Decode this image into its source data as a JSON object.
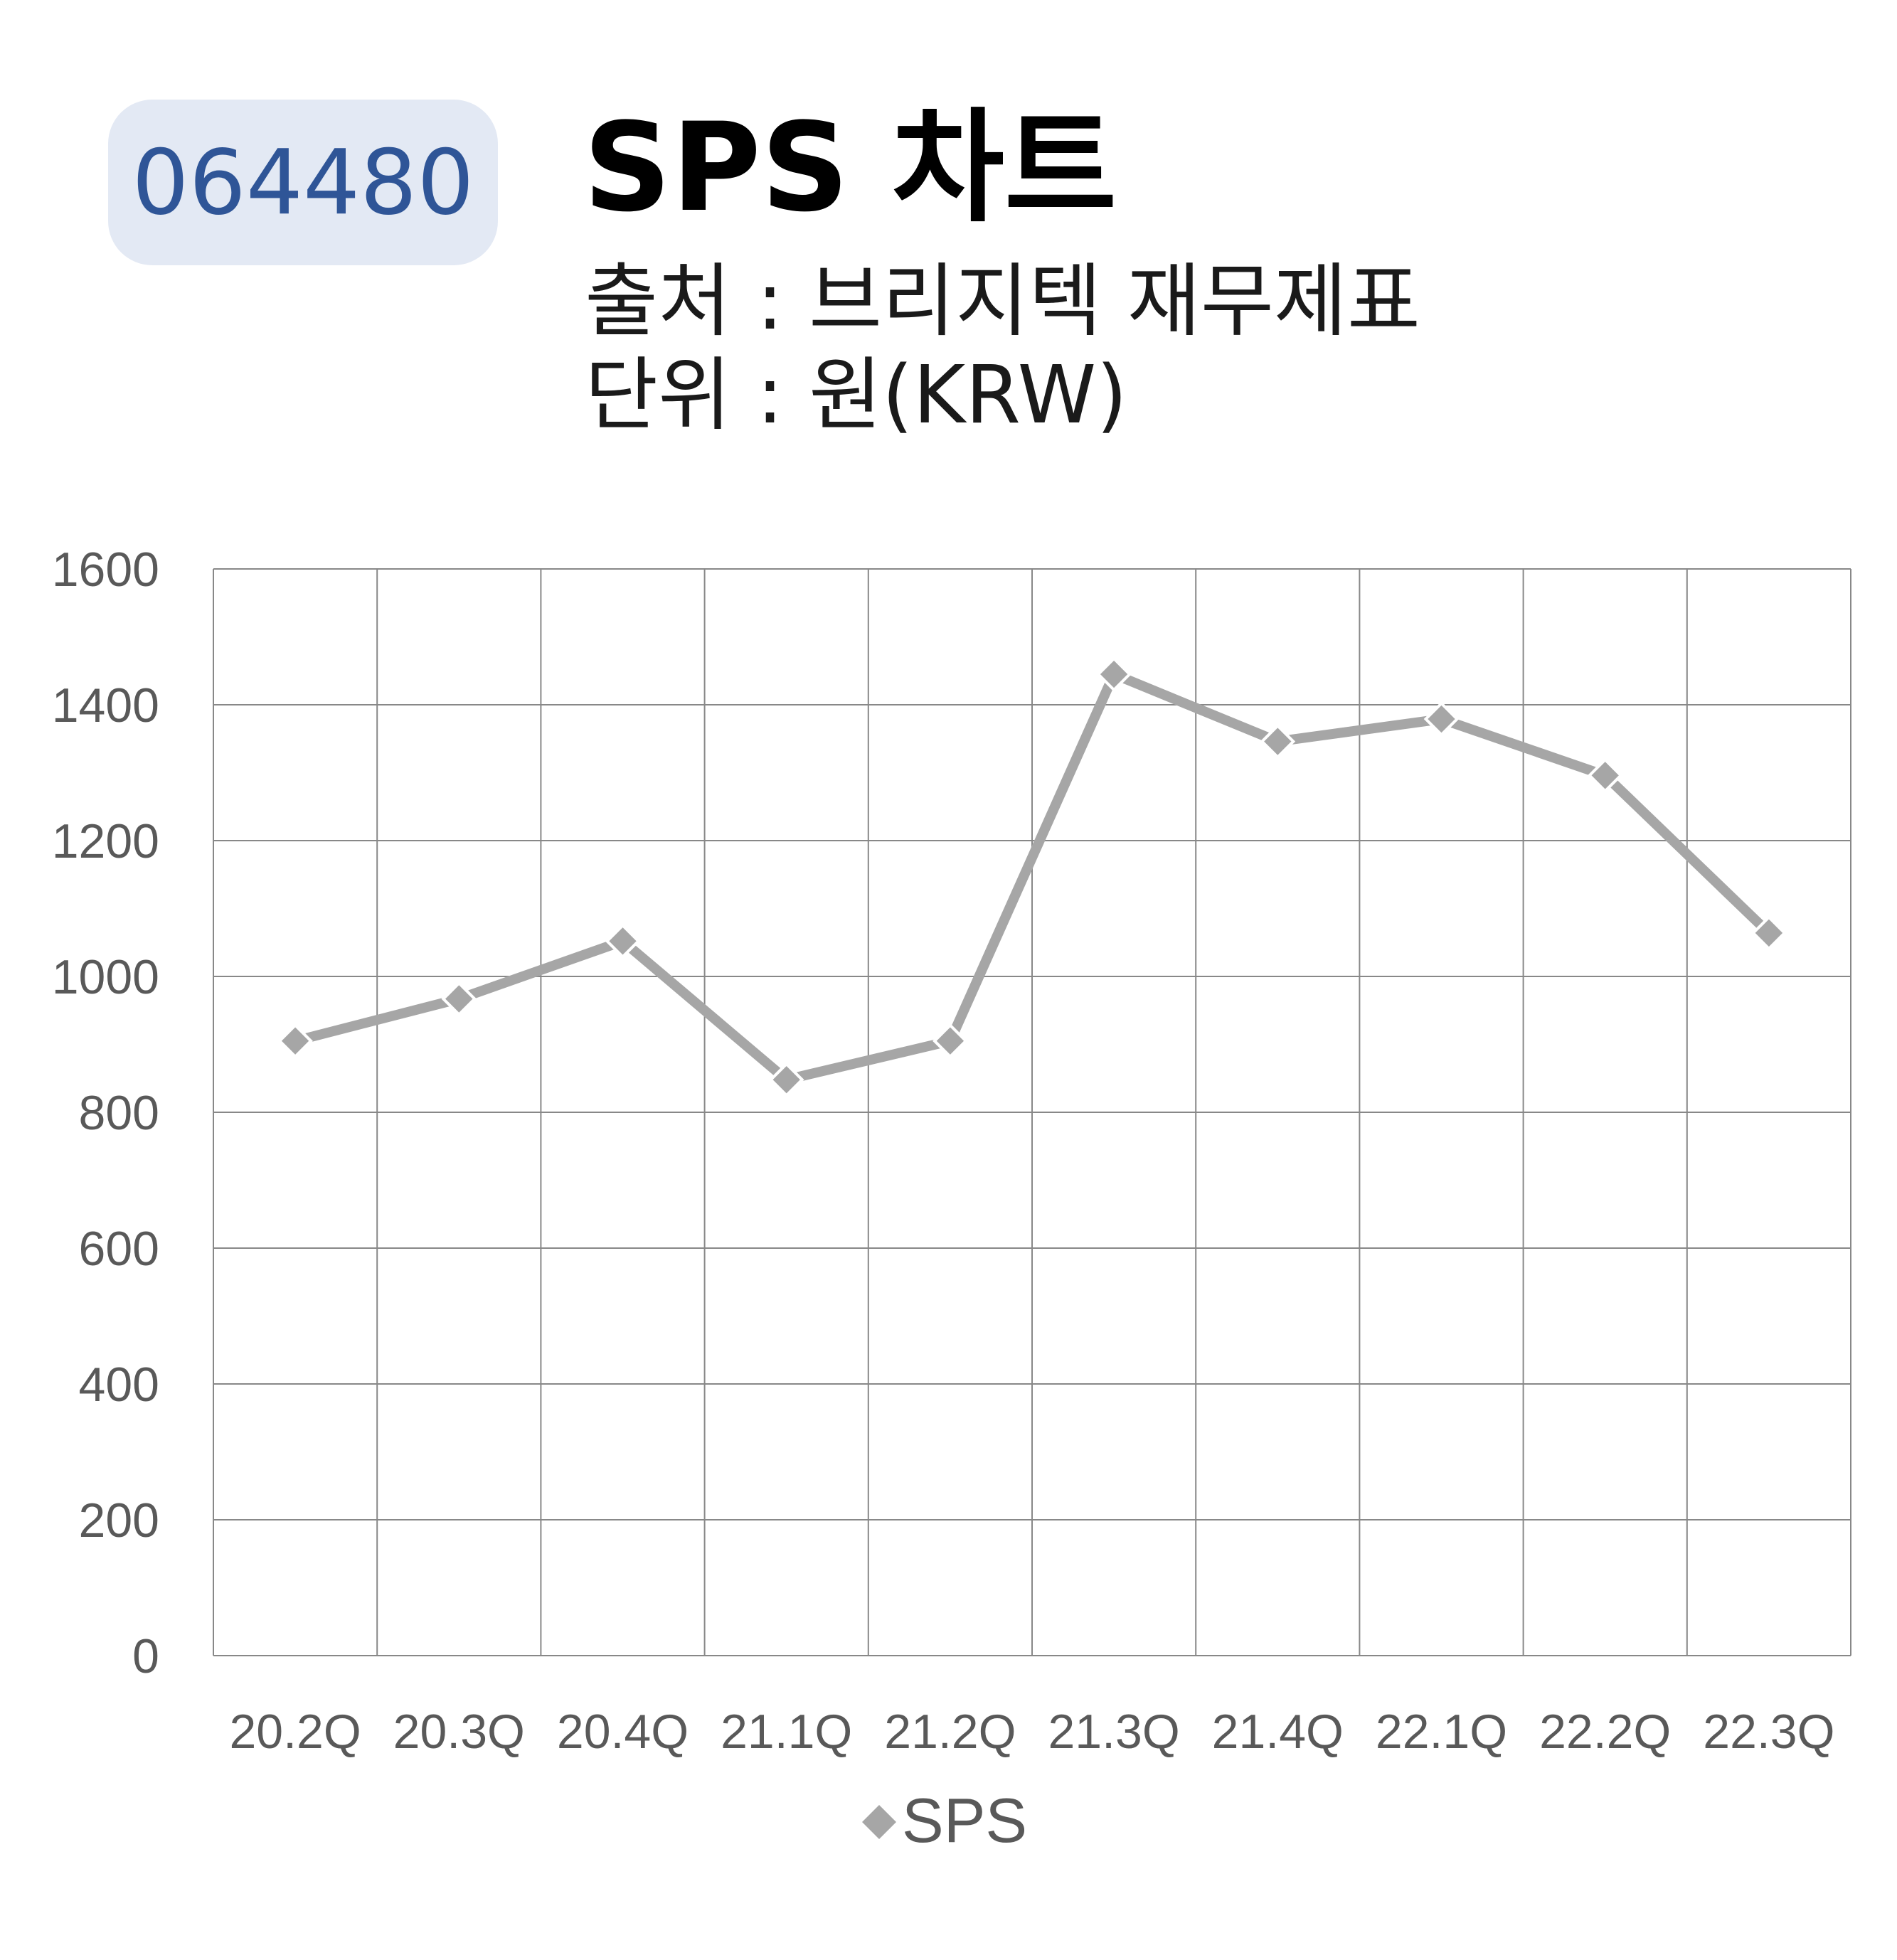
{
  "header": {
    "ticker": "064480",
    "title": "SPS 차트",
    "source": "출처 : 브리지텍 재무제표",
    "unit": "단위 : 원(KRW)"
  },
  "colors": {
    "badge_bg": "#e3e9f4",
    "badge_text": "#2f5597",
    "series": "#a6a6a6",
    "grid": "#888888"
  },
  "chart_data": {
    "type": "line",
    "title": "",
    "xlabel": "",
    "ylabel": "",
    "categories": [
      "20.2Q",
      "20.3Q",
      "20.4Q",
      "21.1Q",
      "21.2Q",
      "21.3Q",
      "21.4Q",
      "22.1Q",
      "22.2Q",
      "22.3Q"
    ],
    "series": [
      {
        "name": "SPS",
        "values": [
          905,
          967,
          1052,
          848,
          905,
          1445,
          1346,
          1379,
          1296,
          1064
        ],
        "marker": "diamond"
      }
    ],
    "ylim": [
      0,
      1600
    ],
    "yticks": [
      0,
      200,
      400,
      600,
      800,
      1000,
      1200,
      1400,
      1600
    ],
    "grid": true,
    "legend": "bottom-center"
  }
}
